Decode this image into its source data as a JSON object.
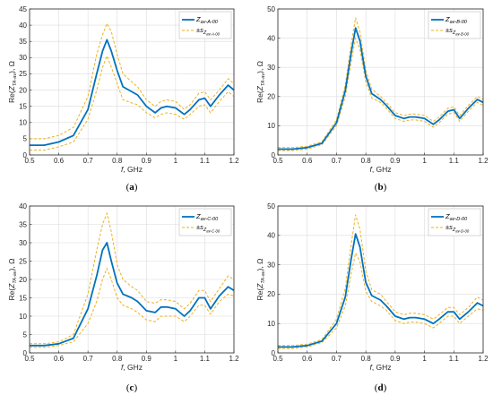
{
  "colors": {
    "mean": "#0072bd",
    "band": "#edb120",
    "grid": "#dcdcdc",
    "axis": "#262626"
  },
  "common": {
    "xlabel_italic": "f",
    "xlabel_rest": ", GHz",
    "ylabel_pre": "Re(",
    "ylabel_z": "Z",
    "ylabel_sub": "TA-av",
    "ylabel_post": "), Ω",
    "legend_pm": "±s",
    "legend_pm_z": "Z"
  },
  "chart_data": [
    {
      "type": "line",
      "panel": "(a)",
      "legend_position": "top-right",
      "grid": true,
      "xlim": [
        0.5,
        1.2
      ],
      "ylim": [
        0,
        45
      ],
      "xticks": [
        "0.5",
        "0.6",
        "0.7",
        "0.8",
        "0.9",
        "1",
        "1.1",
        "1.2"
      ],
      "yticks": [
        "0",
        "5",
        "10",
        "15",
        "20",
        "25",
        "30",
        "35",
        "40",
        "45"
      ],
      "series_name_sub": "av-A-00",
      "band_name_sub": "av-A-00",
      "x": [
        0.5,
        0.55,
        0.6,
        0.65,
        0.7,
        0.73,
        0.75,
        0.765,
        0.78,
        0.8,
        0.82,
        0.85,
        0.87,
        0.9,
        0.93,
        0.95,
        0.97,
        1.0,
        1.03,
        1.05,
        1.08,
        1.1,
        1.12,
        1.15,
        1.18,
        1.2
      ],
      "mean": [
        3,
        3,
        4,
        6,
        14,
        25,
        32,
        35.5,
        32,
        26,
        21,
        19.5,
        18.5,
        15,
        13,
        14.5,
        15,
        14.5,
        12.5,
        14,
        17,
        17.5,
        15,
        18.5,
        21.5,
        20
      ],
      "upper": [
        5,
        5,
        6,
        8.5,
        18,
        31,
        37,
        40.5,
        38,
        31,
        25,
        22.5,
        21,
        17,
        15,
        16.5,
        17,
        16.5,
        14,
        15.5,
        19,
        19.5,
        17,
        20,
        23.5,
        22
      ],
      "lower": [
        1.5,
        1.5,
        2.5,
        4,
        11,
        20,
        27,
        30.5,
        27,
        22,
        17,
        16,
        15.5,
        13,
        11.5,
        12.5,
        13,
        12.5,
        11,
        12.5,
        15,
        15.5,
        13,
        16.5,
        19.5,
        18
      ]
    },
    {
      "type": "line",
      "panel": "(b)",
      "legend_position": "top-right",
      "grid": true,
      "xlim": [
        0.5,
        1.2
      ],
      "ylim": [
        0,
        50
      ],
      "xticks": [
        "0.5",
        "0.6",
        "0.7",
        "0.8",
        "0.9",
        "1",
        "1.1",
        "1.2"
      ],
      "yticks": [
        "0",
        "10",
        "20",
        "30",
        "40",
        "50"
      ],
      "series_name_sub": "av-B-00",
      "band_name_sub": "av-B-00",
      "x": [
        0.5,
        0.55,
        0.6,
        0.65,
        0.7,
        0.73,
        0.75,
        0.765,
        0.78,
        0.8,
        0.82,
        0.85,
        0.87,
        0.9,
        0.93,
        0.95,
        0.97,
        1.0,
        1.03,
        1.05,
        1.08,
        1.1,
        1.12,
        1.15,
        1.18,
        1.2
      ],
      "mean": [
        2,
        2,
        2.5,
        4,
        11,
        22,
        35,
        43.5,
        39,
        27,
        21,
        19,
        17,
        13.5,
        12.5,
        13,
        13,
        12.5,
        10.5,
        12,
        15,
        15.5,
        12.5,
        16,
        19,
        18
      ],
      "upper": [
        2.5,
        2.5,
        3,
        4.5,
        12,
        24,
        38,
        47,
        42,
        29,
        22.5,
        20,
        18,
        14.5,
        13.5,
        14,
        14,
        13.5,
        11.5,
        13,
        16,
        16.5,
        13.5,
        17,
        20,
        19
      ],
      "lower": [
        1.5,
        1.5,
        2,
        3.5,
        10,
        20,
        32,
        40,
        36,
        25,
        19.5,
        18,
        16,
        12.5,
        11.5,
        12,
        12,
        11.5,
        9.5,
        11,
        14,
        14.5,
        11.5,
        15,
        18,
        17
      ]
    },
    {
      "type": "line",
      "panel": "(c)",
      "legend_position": "top-right",
      "grid": true,
      "xlim": [
        0.5,
        1.2
      ],
      "ylim": [
        0,
        40
      ],
      "xticks": [
        "0.5",
        "0.6",
        "0.7",
        "0.8",
        "0.9",
        "1",
        "1.1",
        "1.2"
      ],
      "yticks": [
        "0",
        "5",
        "10",
        "15",
        "20",
        "25",
        "30",
        "35",
        "40"
      ],
      "series_name_sub": "av-C-00",
      "band_name_sub": "av-C-00",
      "x": [
        0.5,
        0.55,
        0.6,
        0.65,
        0.7,
        0.73,
        0.75,
        0.765,
        0.78,
        0.8,
        0.82,
        0.85,
        0.87,
        0.9,
        0.93,
        0.95,
        0.97,
        1.0,
        1.03,
        1.05,
        1.08,
        1.1,
        1.12,
        1.15,
        1.18,
        1.2
      ],
      "mean": [
        2,
        2,
        2.5,
        4,
        12,
        21,
        28,
        30,
        25,
        19,
        16,
        15,
        14,
        11.5,
        11,
        12.5,
        12.5,
        12,
        10,
        11.5,
        15,
        15,
        12,
        15.5,
        18,
        17
      ],
      "upper": [
        2.5,
        2.5,
        3,
        5,
        16,
        28,
        35,
        38,
        33,
        24,
        20,
        18,
        17,
        14,
        13.5,
        14.5,
        14.5,
        14,
        12,
        13.5,
        17,
        17,
        14,
        17.5,
        21,
        20
      ],
      "lower": [
        1.5,
        1.5,
        2,
        3,
        8,
        14,
        20,
        23,
        20,
        15,
        13,
        12,
        11,
        9,
        8.5,
        10,
        10,
        10,
        8.5,
        10,
        13,
        13,
        10.5,
        14,
        16,
        15.5
      ]
    },
    {
      "type": "line",
      "panel": "(d)",
      "legend_position": "top-right",
      "grid": true,
      "xlim": [
        0.5,
        1.2
      ],
      "ylim": [
        0,
        50
      ],
      "xticks": [
        "0.5",
        "0.6",
        "0.7",
        "0.8",
        "0.9",
        "1",
        "1.1",
        "1.2"
      ],
      "yticks": [
        "0",
        "10",
        "20",
        "30",
        "40",
        "50"
      ],
      "series_name_sub": "av-D-00",
      "band_name_sub": "av-D-00",
      "x": [
        0.5,
        0.55,
        0.6,
        0.65,
        0.7,
        0.73,
        0.75,
        0.765,
        0.78,
        0.8,
        0.82,
        0.85,
        0.87,
        0.9,
        0.93,
        0.95,
        0.97,
        1.0,
        1.03,
        1.05,
        1.08,
        1.1,
        1.12,
        1.15,
        1.18,
        1.2
      ],
      "mean": [
        2,
        2,
        2.5,
        4,
        10,
        19,
        32,
        40.5,
        36,
        24,
        19.5,
        18,
        16,
        12.5,
        11.5,
        12,
        12,
        11.5,
        10,
        11.5,
        14,
        14,
        11.5,
        14,
        17,
        16
      ],
      "upper": [
        2.5,
        2.5,
        3,
        4.5,
        11.5,
        22,
        37,
        47,
        42,
        28,
        21.5,
        20,
        17.5,
        14,
        13,
        13.5,
        13.5,
        13,
        11.5,
        13,
        15.5,
        15.5,
        13,
        15.5,
        19,
        18
      ],
      "lower": [
        1.5,
        1.5,
        2,
        3.5,
        8.5,
        16,
        27,
        34,
        31,
        21,
        17.5,
        16,
        14.5,
        11,
        10,
        10.5,
        10.5,
        10,
        8.5,
        10,
        12.5,
        12.5,
        10,
        12.5,
        15,
        14.5
      ]
    }
  ]
}
